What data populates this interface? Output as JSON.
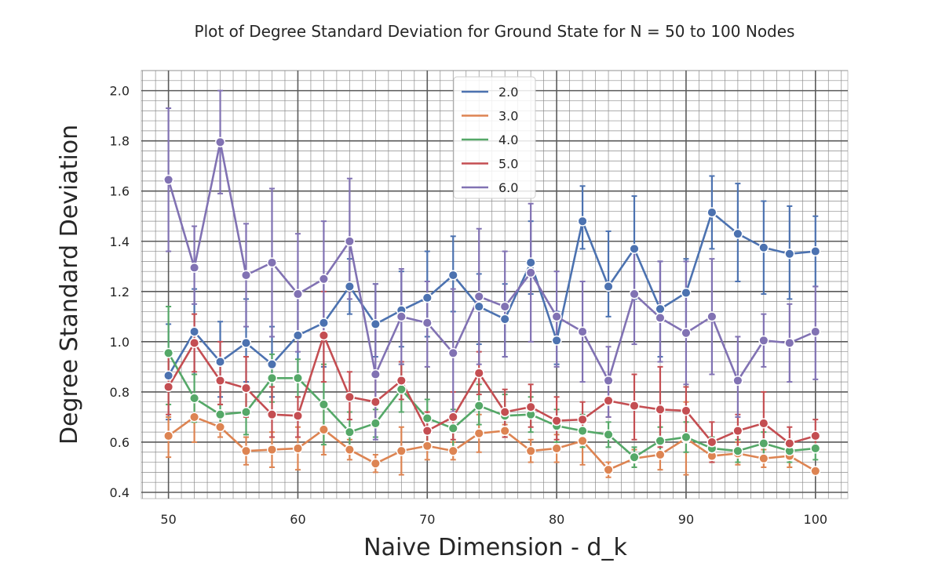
{
  "chart_data": {
    "type": "line",
    "title": "Plot of Degree Standard Deviation for Ground State for N = 50 to 100 Nodes",
    "xlabel": "Naive Dimension - d_k",
    "ylabel": "Degree Standard Deviation",
    "xlim": [
      47.9,
      102.5
    ],
    "ylim": [
      0.375,
      2.08
    ],
    "xticks": [
      50,
      60,
      70,
      80,
      90,
      100
    ],
    "yticks": [
      0.4,
      0.6,
      0.8,
      1.0,
      1.2,
      1.4,
      1.6,
      1.8,
      2.0
    ],
    "x": [
      50,
      52,
      54,
      56,
      58,
      60,
      62,
      64,
      66,
      68,
      70,
      72,
      74,
      76,
      78,
      80,
      82,
      84,
      86,
      88,
      90,
      92,
      94,
      96,
      98,
      100
    ],
    "legend_position": "top-center",
    "grid": "major and minor",
    "series": [
      {
        "name": "2.0",
        "color": "#4c72b0",
        "values": [
          0.865,
          1.04,
          0.92,
          0.995,
          0.91,
          1.025,
          1.075,
          1.22,
          1.07,
          1.125,
          1.175,
          1.265,
          1.14,
          1.09,
          1.315,
          1.005,
          1.48,
          1.22,
          1.37,
          1.13,
          1.195,
          1.515,
          1.43,
          1.375,
          1.35,
          1.36
        ],
        "err_low": [
          0.69,
          0.87,
          0.78,
          0.84,
          0.78,
          0.84,
          0.9,
          1.11,
          0.94,
          0.98,
          1.02,
          1.12,
          0.99,
          0.94,
          1.19,
          0.91,
          1.37,
          1.1,
          1.17,
          0.94,
          1.04,
          1.37,
          1.24,
          1.19,
          1.17,
          1.22
        ],
        "err_high": [
          1.07,
          1.21,
          1.08,
          1.17,
          1.06,
          1.19,
          1.24,
          1.33,
          1.23,
          1.28,
          1.36,
          1.42,
          1.27,
          1.23,
          1.48,
          1.12,
          1.62,
          1.44,
          1.58,
          1.32,
          1.33,
          1.66,
          1.63,
          1.56,
          1.54,
          1.5
        ]
      },
      {
        "name": "3.0",
        "color": "#dd8452",
        "values": [
          0.625,
          0.7,
          0.66,
          0.565,
          0.57,
          0.575,
          0.65,
          0.57,
          0.515,
          0.565,
          0.585,
          0.565,
          0.635,
          0.645,
          0.565,
          0.575,
          0.605,
          0.49,
          0.535,
          0.55,
          0.615,
          0.545,
          0.555,
          0.535,
          0.545,
          0.485
        ],
        "err_low": [
          0.54,
          0.6,
          0.62,
          0.51,
          0.5,
          0.49,
          0.55,
          0.53,
          0.48,
          0.47,
          0.53,
          0.53,
          0.56,
          0.62,
          0.52,
          0.52,
          0.51,
          0.46,
          0.5,
          0.49,
          0.47,
          0.52,
          0.51,
          0.5,
          0.5,
          0.48
        ],
        "err_high": [
          0.7,
          0.79,
          0.7,
          0.62,
          0.64,
          0.66,
          0.74,
          0.61,
          0.55,
          0.66,
          0.64,
          0.6,
          0.71,
          0.67,
          0.61,
          0.63,
          0.7,
          0.52,
          0.57,
          0.61,
          0.76,
          0.57,
          0.6,
          0.57,
          0.59,
          0.49
        ]
      },
      {
        "name": "4.0",
        "color": "#55a868",
        "values": [
          0.955,
          0.775,
          0.71,
          0.72,
          0.855,
          0.855,
          0.75,
          0.64,
          0.675,
          0.81,
          0.695,
          0.655,
          0.745,
          0.705,
          0.71,
          0.665,
          0.645,
          0.63,
          0.54,
          0.605,
          0.62,
          0.575,
          0.565,
          0.595,
          0.565,
          0.575
        ],
        "err_low": [
          0.75,
          0.68,
          0.66,
          0.63,
          0.76,
          0.78,
          0.59,
          0.56,
          0.62,
          0.72,
          0.6,
          0.58,
          0.67,
          0.63,
          0.64,
          0.6,
          0.58,
          0.58,
          0.5,
          0.55,
          0.56,
          0.53,
          0.52,
          0.55,
          0.52,
          0.53
        ],
        "err_high": [
          1.14,
          0.87,
          0.75,
          0.81,
          0.95,
          0.93,
          0.91,
          0.72,
          0.73,
          0.91,
          0.77,
          0.73,
          0.83,
          0.79,
          0.78,
          0.73,
          0.71,
          0.68,
          0.58,
          0.66,
          0.68,
          0.62,
          0.61,
          0.64,
          0.61,
          0.62
        ]
      },
      {
        "name": "5.0",
        "color": "#c44e52",
        "values": [
          0.82,
          0.995,
          0.845,
          0.815,
          0.71,
          0.705,
          1.025,
          0.78,
          0.76,
          0.845,
          0.645,
          0.7,
          0.875,
          0.72,
          0.74,
          0.685,
          0.69,
          0.765,
          0.745,
          0.73,
          0.725,
          0.6,
          0.645,
          0.675,
          0.595,
          0.625
        ],
        "err_low": [
          0.71,
          0.88,
          0.75,
          0.7,
          0.62,
          0.62,
          0.84,
          0.69,
          0.66,
          0.77,
          0.58,
          0.61,
          0.79,
          0.62,
          0.66,
          0.61,
          0.63,
          0.7,
          0.61,
          0.58,
          0.61,
          0.52,
          0.58,
          0.59,
          0.54,
          0.57
        ],
        "err_high": [
          0.95,
          1.11,
          1.0,
          0.94,
          0.82,
          0.78,
          1.2,
          0.88,
          0.86,
          0.92,
          0.72,
          0.8,
          0.96,
          0.81,
          0.83,
          0.78,
          0.76,
          0.84,
          0.87,
          0.9,
          0.82,
          0.68,
          0.71,
          0.8,
          0.66,
          0.69
        ]
      },
      {
        "name": "6.0",
        "color": "#8172b3",
        "values": [
          1.645,
          1.295,
          1.795,
          1.265,
          1.315,
          1.19,
          1.25,
          1.4,
          0.87,
          1.1,
          1.075,
          0.955,
          1.18,
          1.14,
          1.275,
          1.1,
          1.04,
          0.845,
          1.19,
          1.095,
          1.035,
          1.1,
          0.845,
          1.005,
          0.995,
          1.04
        ],
        "err_low": [
          1.36,
          1.15,
          1.59,
          1.06,
          1.02,
          0.96,
          1.02,
          1.17,
          0.61,
          0.91,
          0.9,
          0.72,
          0.91,
          0.94,
          1.0,
          0.9,
          0.84,
          0.7,
          0.99,
          0.92,
          0.83,
          0.87,
          0.7,
          0.9,
          0.84,
          0.85
        ],
        "err_high": [
          1.93,
          1.46,
          2.0,
          1.47,
          1.61,
          1.43,
          1.48,
          1.65,
          1.23,
          1.29,
          1.24,
          1.21,
          1.45,
          1.36,
          1.55,
          1.28,
          1.24,
          0.98,
          1.38,
          1.32,
          1.32,
          1.33,
          1.02,
          1.11,
          1.15,
          1.22
        ]
      }
    ]
  }
}
